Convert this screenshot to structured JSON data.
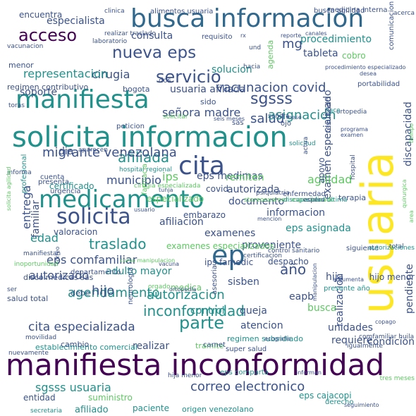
{
  "word_cloud": {
    "background": "#ffffff",
    "palette": [
      "#440154",
      "#3b528b",
      "#21918c",
      "#5ec962",
      "#fde725"
    ],
    "words": [
      {
        "text": "usuaria",
        "color": "#fde725"
      },
      {
        "text": "manifiesta inconformidad",
        "color": "#440154"
      },
      {
        "text": "solicita informacion",
        "color": "#21918c"
      },
      {
        "text": "busca informacion",
        "color": "#31688e"
      },
      {
        "text": "medicamento",
        "color": "#21918c"
      },
      {
        "text": "manifiesta",
        "color": "#21918c"
      },
      {
        "text": "ep",
        "color": "#31688e"
      },
      {
        "text": "cita",
        "color": "#3b528b"
      },
      {
        "text": "solicita",
        "color": "#3b528b"
      },
      {
        "text": "acceso",
        "color": "#440154"
      },
      {
        "text": "nueva eps",
        "color": "#3b528b"
      },
      {
        "text": "servicio",
        "color": "#3b528b"
      },
      {
        "text": "sgsss",
        "color": "#3b528b"
      },
      {
        "text": "afiliada",
        "color": "#21918c"
      },
      {
        "text": "parte",
        "color": "#21918c"
      },
      {
        "text": "año",
        "color": "#3b528b"
      },
      {
        "text": "agendamiento",
        "color": "#21918c"
      },
      {
        "text": "autorizacion",
        "color": "#21918c"
      },
      {
        "text": "inconformidad",
        "color": "#21918c"
      },
      {
        "text": "cita especializada",
        "color": "#3b528b"
      },
      {
        "text": "sgsss usuaria",
        "color": "#21918c"
      },
      {
        "text": "correo electronico",
        "color": "#3b528b"
      },
      {
        "text": "vacunacion covid",
        "color": "#3b528b"
      },
      {
        "text": "salud",
        "color": "#3b528b"
      },
      {
        "text": "asignacion",
        "color": "#21918c"
      },
      {
        "text": "migrante venezolana",
        "color": "#3b528b"
      },
      {
        "text": "señora madre",
        "color": "#3b528b"
      },
      {
        "text": "usuaria afiliada",
        "color": "#3b528b"
      },
      {
        "text": "cirugia",
        "color": "#3b528b"
      },
      {
        "text": "soporte",
        "color": "#3b528b"
      },
      {
        "text": "representacion",
        "color": "#21918c"
      },
      {
        "text": "solucion",
        "color": "#21918c"
      },
      {
        "text": "consulta",
        "color": "#3b528b"
      },
      {
        "text": "especialista",
        "color": "#3b528b"
      },
      {
        "text": "procedimiento",
        "color": "#21918c"
      },
      {
        "text": "mg",
        "color": "#3b528b"
      },
      {
        "text": "tableta",
        "color": "#3b528b"
      },
      {
        "text": "examen especializado",
        "color": "#3b528b"
      },
      {
        "text": "discapacidad",
        "color": "#3b528b"
      },
      {
        "text": "agilidad",
        "color": "#5ec962"
      },
      {
        "text": "municipio",
        "color": "#3b528b"
      },
      {
        "text": "ips",
        "color": "#5ec962"
      },
      {
        "text": "eps medimas",
        "color": "#3b528b"
      },
      {
        "text": "dia",
        "color": "#3b528b"
      },
      {
        "text": "remiten",
        "color": "#5ec962"
      },
      {
        "text": "autorizada",
        "color": "#3b528b"
      },
      {
        "text": "documento",
        "color": "#3b528b"
      },
      {
        "text": "informacion",
        "color": "#3b528b"
      },
      {
        "text": "edad",
        "color": "#21918c"
      },
      {
        "text": "afiliacion",
        "color": "#3b528b"
      },
      {
        "text": "traslado",
        "color": "#21918c"
      },
      {
        "text": "examenes",
        "color": "#3b528b"
      },
      {
        "text": "eps asignada",
        "color": "#21918c"
      },
      {
        "text": "proveniente",
        "color": "#3b528b"
      },
      {
        "text": "eps comfamiliar",
        "color": "#3b528b"
      },
      {
        "text": "adulto mayor",
        "color": "#21918c"
      },
      {
        "text": "autorizado",
        "color": "#3b528b"
      },
      {
        "text": "hijo",
        "color": "#3b528b"
      },
      {
        "text": "sisben",
        "color": "#3b528b"
      },
      {
        "text": "hija",
        "color": "#3b528b"
      },
      {
        "text": "entrega",
        "color": "#3b528b"
      },
      {
        "text": "familiar",
        "color": "#3b528b"
      },
      {
        "text": "control",
        "color": "#21918c"
      },
      {
        "text": "queja",
        "color": "#3b528b"
      },
      {
        "text": "busca",
        "color": "#5ec962"
      },
      {
        "text": "eapb",
        "color": "#3b528b"
      },
      {
        "text": "realizacion",
        "color": "#3b528b"
      },
      {
        "text": "pendiente",
        "color": "#3b528b"
      },
      {
        "text": "requiere",
        "color": "#3b528b"
      },
      {
        "text": "condicion",
        "color": "#3b528b"
      },
      {
        "text": "unidades",
        "color": "#3b528b"
      },
      {
        "text": "atencion",
        "color": "#3b528b"
      },
      {
        "text": "realizar",
        "color": "#3b528b"
      },
      {
        "text": "afiliado",
        "color": "#21918c"
      },
      {
        "text": "entidad",
        "color": "#3b528b"
      },
      {
        "text": "suministro",
        "color": "#5ec962"
      },
      {
        "text": "paciente",
        "color": "#21918c"
      },
      {
        "text": "eps cajacopi",
        "color": "#21918c"
      },
      {
        "text": "origen venezolano",
        "color": "#21918c"
      },
      {
        "text": "establecimiento comercial",
        "color": "#21918c"
      },
      {
        "text": "cambio",
        "color": "#3b528b"
      },
      {
        "text": "salud total",
        "color": "#3b528b"
      },
      {
        "text": "ips famedic",
        "color": "#3b528b"
      },
      {
        "text": "despacho",
        "color": "#3b528b"
      },
      {
        "text": "valoracion",
        "color": "#3b528b"
      },
      {
        "text": "examenes especializados",
        "color": "#5ec962"
      },
      {
        "text": "especializado",
        "color": "#5ec962"
      },
      {
        "text": "embarazo",
        "color": "#3b528b"
      },
      {
        "text": "certificado",
        "color": "#21918c"
      },
      {
        "text": "covid",
        "color": "#3b528b"
      },
      {
        "text": "menor",
        "color": "#3b528b"
      },
      {
        "text": "regimen contributivo",
        "color": "#3b528b"
      },
      {
        "text": "bogota",
        "color": "#3b528b"
      },
      {
        "text": "encuentra",
        "color": "#3b528b"
      },
      {
        "text": "alimentos usuaria",
        "color": "#3b528b"
      },
      {
        "text": "medicina interna",
        "color": "#3b528b"
      },
      {
        "text": "vacunacion",
        "color": "#3b528b"
      },
      {
        "text": "laboratorio",
        "color": "#3b528b"
      },
      {
        "text": "requisito",
        "color": "#3b528b"
      },
      {
        "text": "agenda",
        "color": "#5ec962"
      },
      {
        "text": "cobro",
        "color": "#5ec962"
      },
      {
        "text": "portabilidad",
        "color": "#3b528b"
      },
      {
        "text": "medica",
        "color": "#5ec962"
      },
      {
        "text": "tramite",
        "color": "#5ec962"
      },
      {
        "text": "carnet",
        "color": "#3b528b"
      },
      {
        "text": "super salud",
        "color": "#3b528b"
      },
      {
        "text": "eps comparta",
        "color": "#21918c"
      },
      {
        "text": "comfamiliar huila",
        "color": "#3b528b"
      },
      {
        "text": "copago",
        "color": "#3b528b"
      },
      {
        "text": "hijo menor",
        "color": "#3b528b"
      },
      {
        "text": "presente año",
        "color": "#21918c"
      },
      {
        "text": "derecho",
        "color": "#21918c"
      },
      {
        "text": "seguimiento",
        "color": "#3b528b"
      },
      {
        "text": "regimen subsidiado",
        "color": "#21918c"
      },
      {
        "text": "ecografia",
        "color": "#3b528b"
      },
      {
        "text": "movilidad",
        "color": "#3b528b"
      },
      {
        "text": "debe",
        "color": "#3b528b"
      },
      {
        "text": "ser",
        "color": "#3b528b"
      },
      {
        "text": "nuevamente",
        "color": "#3b528b"
      },
      {
        "text": "secretaria",
        "color": "#21918c"
      },
      {
        "text": "hija menor",
        "color": "#3b528b"
      },
      {
        "text": "informan",
        "color": "#3b528b"
      },
      {
        "text": "tres meses",
        "color": "#5ec962"
      },
      {
        "text": "dos",
        "color": "#3b528b"
      },
      {
        "text": "sido",
        "color": "#3b528b"
      },
      {
        "text": "solicitar",
        "color": "#5ec962"
      },
      {
        "text": "seis meses",
        "color": "#3b528b"
      },
      {
        "text": "sas",
        "color": "#3b528b"
      },
      {
        "text": "peticion",
        "color": "#3b528b"
      },
      {
        "text": "señora",
        "color": "#3b528b"
      },
      {
        "text": "mese",
        "color": "#3b528b"
      },
      {
        "text": "ortopedia",
        "color": "#3b528b"
      },
      {
        "text": "hace",
        "color": "#21918c"
      },
      {
        "text": "ojo",
        "color": "#3b528b"
      },
      {
        "text": "aparecen",
        "color": "#3b528b"
      },
      {
        "text": "hospital regional",
        "color": "#21918c"
      },
      {
        "text": "cirugia especializada",
        "color": "#5ec962"
      },
      {
        "text": "psiquiatria",
        "color": "#3b528b"
      },
      {
        "text": "enfermedad",
        "color": "#3b528b"
      },
      {
        "text": "apoyo",
        "color": "#3b528b"
      },
      {
        "text": "terapia",
        "color": "#3b528b"
      },
      {
        "text": "presenta",
        "color": "#3b528b"
      },
      {
        "text": "urgencia",
        "color": "#3b528b"
      },
      {
        "text": "cuenta",
        "color": "#3b528b"
      },
      {
        "text": "manifiestan",
        "color": "#3b528b"
      },
      {
        "text": "profesional",
        "color": "#21918c"
      },
      {
        "text": "mencion",
        "color": "#3b528b"
      },
      {
        "text": "control sanitario",
        "color": "#3b528b"
      },
      {
        "text": "certificacion",
        "color": "#3b528b"
      },
      {
        "text": "argumenta",
        "color": "#3b528b"
      },
      {
        "text": "neurologia",
        "color": "#3b528b"
      },
      {
        "text": "asesoria",
        "color": "#3b528b"
      },
      {
        "text": "manipulacion",
        "color": "#3b528b"
      },
      {
        "text": "igualmente",
        "color": "#3b528b"
      },
      {
        "text": "siguiente",
        "color": "#3b528b"
      },
      {
        "text": "total",
        "color": "#3b528b"
      },
      {
        "text": "area",
        "color": "#5ec962"
      },
      {
        "text": "autorizaciones",
        "color": "#21918c"
      },
      {
        "text": "realizar traslado",
        "color": "#3b528b"
      },
      {
        "text": "clinica",
        "color": "#3b528b"
      },
      {
        "text": "und",
        "color": "#3b528b"
      },
      {
        "text": "rx",
        "color": "#3b528b"
      },
      {
        "text": "reporte",
        "color": "#3b528b"
      },
      {
        "text": "canales",
        "color": "#3b528b"
      },
      {
        "text": "comunicacion",
        "color": "#3b528b"
      },
      {
        "text": "desea",
        "color": "#3b528b"
      },
      {
        "text": "acerca",
        "color": "#3b528b"
      },
      {
        "text": "busca agilidad",
        "color": "#3b528b"
      },
      {
        "text": "hacia",
        "color": "#3b528b"
      },
      {
        "text": "procedimiento especializado",
        "color": "#3b528b"
      },
      {
        "text": "solicitud",
        "color": "#21918c"
      },
      {
        "text": "actua",
        "color": "#3b528b"
      },
      {
        "text": "resultado",
        "color": "#3b528b"
      },
      {
        "text": "examen",
        "color": "#3b528b"
      },
      {
        "text": "programa",
        "color": "#3b528b"
      },
      {
        "text": "hospital",
        "color": "#3b528b"
      },
      {
        "text": "informa",
        "color": "#3b528b"
      },
      {
        "text": "farmacia",
        "color": "#5ec962"
      },
      {
        "text": "tunja",
        "color": "#3b528b"
      },
      {
        "text": "toras",
        "color": "#3b528b"
      },
      {
        "text": "inoportunidad",
        "color": "#5ec962"
      },
      {
        "text": "discolmedicas sas",
        "color": "#3b528b"
      },
      {
        "text": "solicita agilidad",
        "color": "#5ec962"
      },
      {
        "text": "departamento",
        "color": "#3b528b"
      },
      {
        "text": "correo",
        "color": "#3b528b"
      },
      {
        "text": "curso manipulacion",
        "color": "#5ec962"
      },
      {
        "text": "vacuna",
        "color": "#3b528b"
      },
      {
        "text": "usuario",
        "color": "#3b528b"
      },
      {
        "text": "ortopedia",
        "color": "#3b528b"
      },
      {
        "text": "quirurgica",
        "color": "#5ec962"
      },
      {
        "text": "tiempo",
        "color": "#5ec962"
      },
      {
        "text": "orgado",
        "color": "#5ec962"
      },
      {
        "text": "storeo",
        "color": "#5ec962"
      },
      {
        "text": "examen especializado",
        "color": "#5ec962"
      },
      {
        "text": "discapacidad ultima",
        "color": "#21918c"
      },
      {
        "text": "espera",
        "color": "#3b528b"
      }
    ]
  }
}
